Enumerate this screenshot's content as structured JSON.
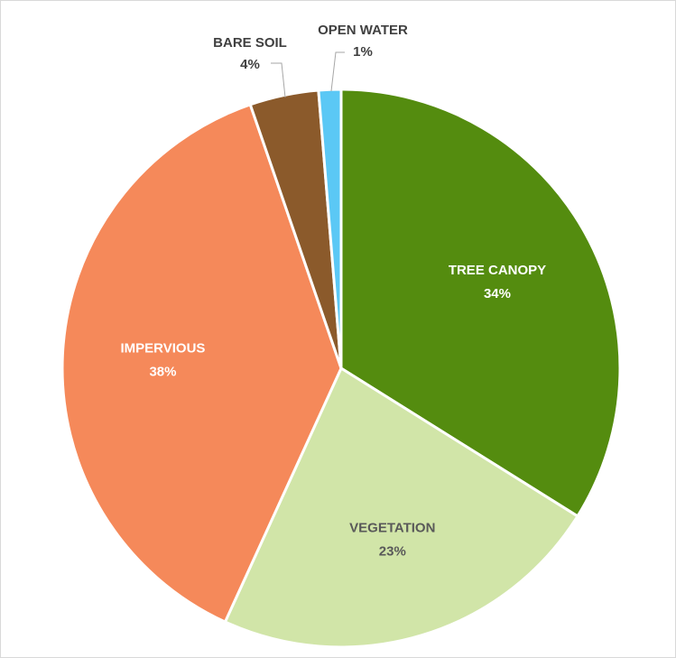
{
  "chart_data": {
    "type": "pie",
    "title": "",
    "slices": [
      {
        "label": "TREE CANOPY",
        "value": 34,
        "value_label": "34%",
        "color": "#548c0f",
        "text_color": "#ffffff"
      },
      {
        "label": "VEGETATION",
        "value": 23,
        "value_label": "23%",
        "color": "#d1e5a8",
        "text_color": "#595959"
      },
      {
        "label": "IMPERVIOUS",
        "value": 38,
        "value_label": "38%",
        "color": "#f5895a",
        "text_color": "#ffffff"
      },
      {
        "label": "BARE SOIL",
        "value": 4,
        "value_label": "4%",
        "color": "#8b5a2b",
        "text_color": "#404040"
      },
      {
        "label": "OPEN WATER",
        "value": 1.3,
        "value_label": "1%",
        "color": "#5bc8f5",
        "text_color": "#404040"
      }
    ],
    "start_angle": "12 o'clock",
    "direction": "clockwise",
    "legend": "none"
  }
}
